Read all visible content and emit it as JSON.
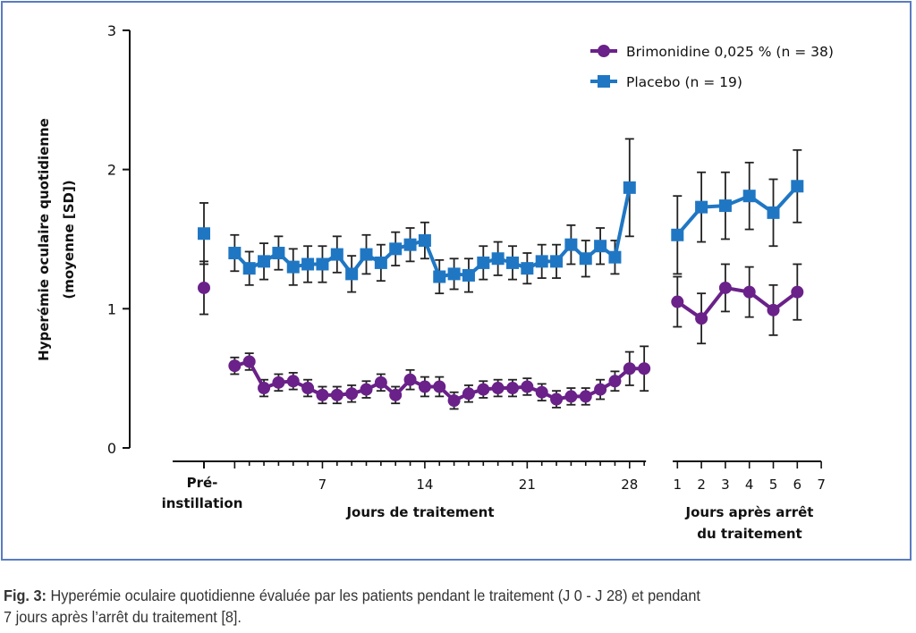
{
  "chart_data": {
    "type": "line",
    "title": "",
    "ylabel_line1": "Hyperémie oculaire quotidienne",
    "ylabel_line2": "(moyenne [SD])",
    "ylim": [
      0,
      3
    ],
    "yticks": [
      "0",
      "1",
      "2",
      "3"
    ],
    "segments": {
      "pre": {
        "label_line1": "Pré-",
        "label_line2": "instillation"
      },
      "treatment": {
        "label": "Jours de traitement",
        "ticks": [
          "7",
          "14",
          "21",
          "28"
        ],
        "xlim": [
          1,
          29
        ]
      },
      "post": {
        "label_line1": "Jours après arrêt",
        "label_line2": "du traitement",
        "ticks": [
          "1",
          "2",
          "3",
          "4",
          "5",
          "6",
          "7"
        ]
      }
    },
    "legend_position": "top-right",
    "series": [
      {
        "name": "Brimonidine 0,025 % (n = 38)",
        "color": "#6a2189",
        "marker": "circle",
        "pre": {
          "value": 1.15,
          "sd": 0.19
        },
        "treatment_days": [
          1,
          2,
          3,
          4,
          5,
          6,
          7,
          8,
          9,
          10,
          11,
          12,
          13,
          14,
          15,
          16,
          17,
          18,
          19,
          20,
          21,
          22,
          23,
          24,
          25,
          26,
          27,
          28,
          29
        ],
        "treatment_values": [
          0.59,
          0.62,
          0.43,
          0.47,
          0.48,
          0.43,
          0.38,
          0.38,
          0.39,
          0.42,
          0.47,
          0.38,
          0.49,
          0.44,
          0.44,
          0.34,
          0.39,
          0.42,
          0.43,
          0.43,
          0.44,
          0.4,
          0.35,
          0.37,
          0.37,
          0.42,
          0.48,
          0.57,
          0.57
        ],
        "treatment_sd": [
          0.06,
          0.06,
          0.06,
          0.06,
          0.06,
          0.06,
          0.06,
          0.06,
          0.06,
          0.06,
          0.06,
          0.06,
          0.07,
          0.07,
          0.07,
          0.06,
          0.06,
          0.06,
          0.06,
          0.06,
          0.06,
          0.06,
          0.06,
          0.06,
          0.06,
          0.07,
          0.07,
          0.12,
          0.16
        ],
        "post_days": [
          1,
          2,
          3,
          4,
          5,
          6
        ],
        "post_values": [
          1.05,
          0.93,
          1.15,
          1.12,
          0.99,
          1.12
        ],
        "post_sd": [
          0.18,
          0.18,
          0.17,
          0.18,
          0.18,
          0.2
        ]
      },
      {
        "name": "Placebo (n = 19)",
        "color": "#1f77c4",
        "marker": "square",
        "pre": {
          "value": 1.54,
          "sd": 0.22
        },
        "treatment_days": [
          1,
          2,
          3,
          4,
          5,
          6,
          7,
          8,
          9,
          10,
          11,
          12,
          13,
          14,
          15,
          16,
          17,
          18,
          19,
          20,
          21,
          22,
          23,
          24,
          25,
          26,
          27,
          28
        ],
        "treatment_values": [
          1.4,
          1.29,
          1.34,
          1.4,
          1.3,
          1.32,
          1.32,
          1.39,
          1.25,
          1.39,
          1.33,
          1.43,
          1.46,
          1.49,
          1.23,
          1.25,
          1.24,
          1.33,
          1.36,
          1.33,
          1.29,
          1.34,
          1.34,
          1.46,
          1.36,
          1.45,
          1.37,
          1.87
        ],
        "treatment_sd": [
          0.13,
          0.12,
          0.13,
          0.12,
          0.13,
          0.13,
          0.13,
          0.13,
          0.13,
          0.14,
          0.13,
          0.12,
          0.12,
          0.13,
          0.12,
          0.11,
          0.12,
          0.12,
          0.12,
          0.12,
          0.11,
          0.12,
          0.12,
          0.14,
          0.13,
          0.13,
          0.12,
          0.35
        ],
        "post_days": [
          1,
          2,
          3,
          4,
          5,
          6
        ],
        "post_values": [
          1.53,
          1.73,
          1.74,
          1.81,
          1.69,
          1.88
        ],
        "post_sd": [
          0.28,
          0.25,
          0.24,
          0.24,
          0.24,
          0.26
        ]
      }
    ]
  },
  "caption": {
    "label": "Fig. 3:",
    "text": " Hyperémie oculaire quotidienne évaluée par les patients pendant le traitement (J 0 - J 28) et pendant",
    "text_line2": "7 jours après l’arrêt du traitement [8]."
  }
}
